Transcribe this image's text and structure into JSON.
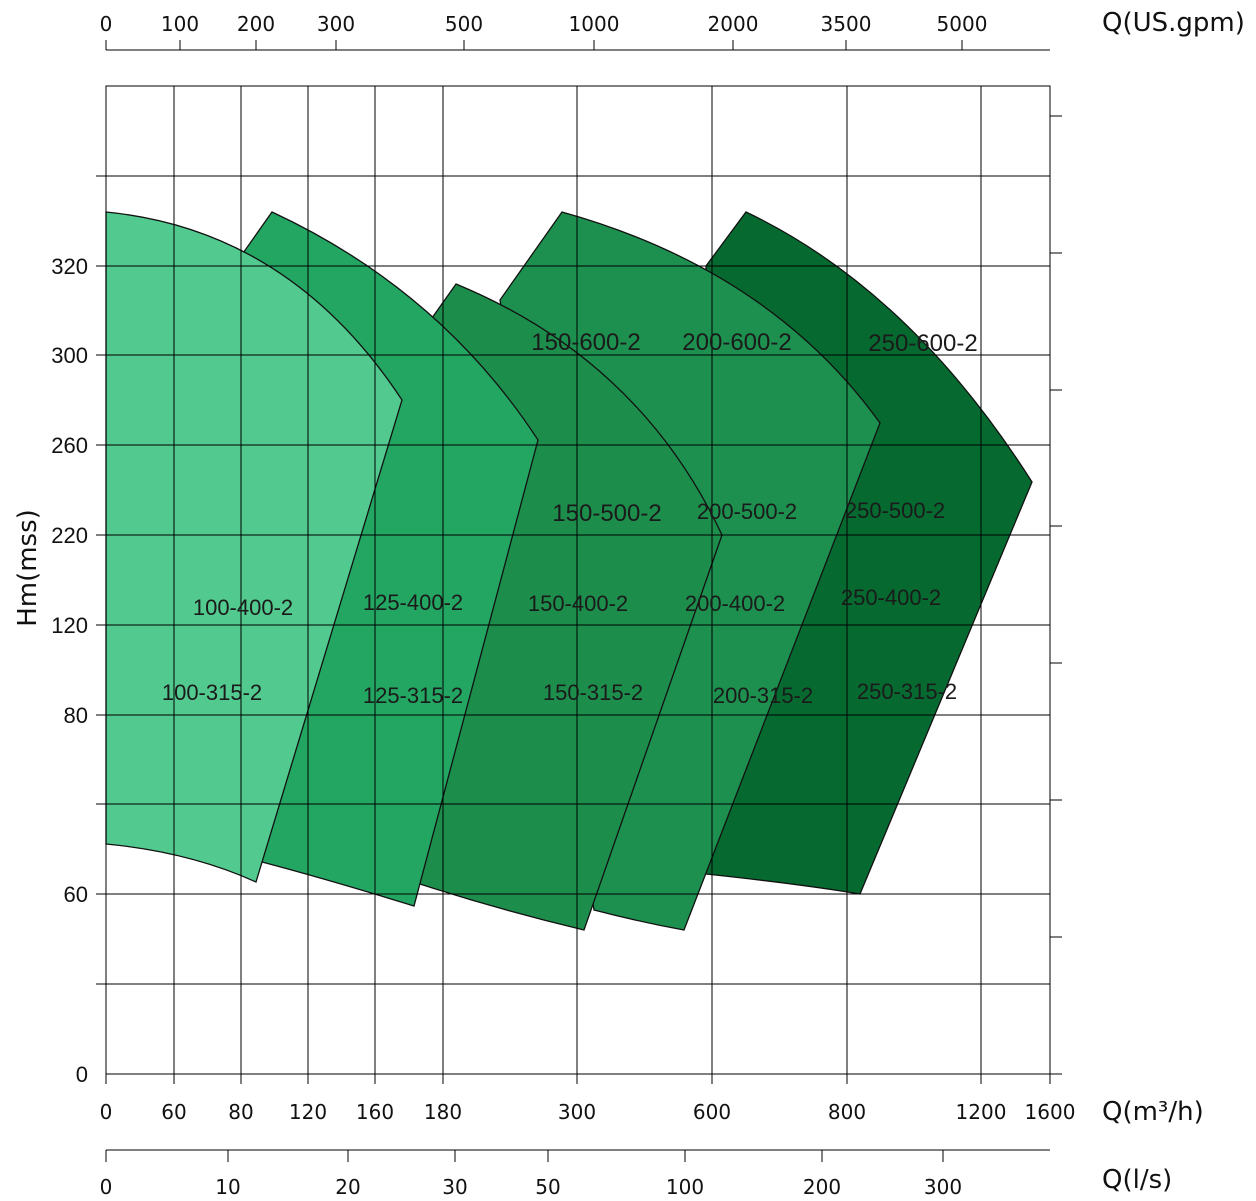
{
  "chart_data": {
    "type": "area",
    "title": "",
    "ylabel": "Hm(mss)",
    "y_ticks": [
      "0",
      "60",
      "80",
      "120",
      "220",
      "260",
      "300",
      "320"
    ],
    "x_axes": {
      "top": {
        "label": "Q(US.gpm)",
        "ticks": [
          "0",
          "100",
          "200",
          "300",
          "500",
          "1000",
          "2000",
          "3500",
          "5000"
        ]
      },
      "main": {
        "label": "Q(m³/h)",
        "ticks": [
          "0",
          "60",
          "80",
          "120",
          "160",
          "180",
          "300",
          "600",
          "800",
          "1200",
          "1600"
        ]
      },
      "bottom": {
        "label": "Q(l/s)",
        "ticks": [
          "0",
          "10",
          "20",
          "30",
          "50",
          "100",
          "200",
          "300"
        ]
      }
    },
    "grid": true,
    "colors": {
      "family_100": "#52c98e",
      "family_125": "#24a663",
      "family_150": "#1d8d4c",
      "family_200": "#1d904f",
      "family_250": "#066a30",
      "outline": "#111111",
      "grid": "#000000"
    },
    "pump_families": [
      {
        "family": "100",
        "models": [
          "100-400-2",
          "100-315-2"
        ],
        "q_range_m3h": [
          0,
          90
        ]
      },
      {
        "family": "125",
        "models": [
          "125-400-2",
          "125-315-2"
        ],
        "q_range_m3h": [
          80,
          185
        ]
      },
      {
        "family": "150",
        "models": [
          "150-600-2",
          "150-500-2",
          "150-400-2",
          "150-315-2"
        ],
        "q_range_m3h": [
          180,
          480
        ]
      },
      {
        "family": "200",
        "models": [
          "200-600-2",
          "200-500-2",
          "200-400-2",
          "200-315-2"
        ],
        "q_range_m3h": [
          300,
          840
        ]
      },
      {
        "family": "250",
        "models": [
          "250-600-2",
          "250-500-2",
          "250-400-2",
          "250-315-2"
        ],
        "q_range_m3h": [
          600,
          1500
        ]
      }
    ]
  }
}
